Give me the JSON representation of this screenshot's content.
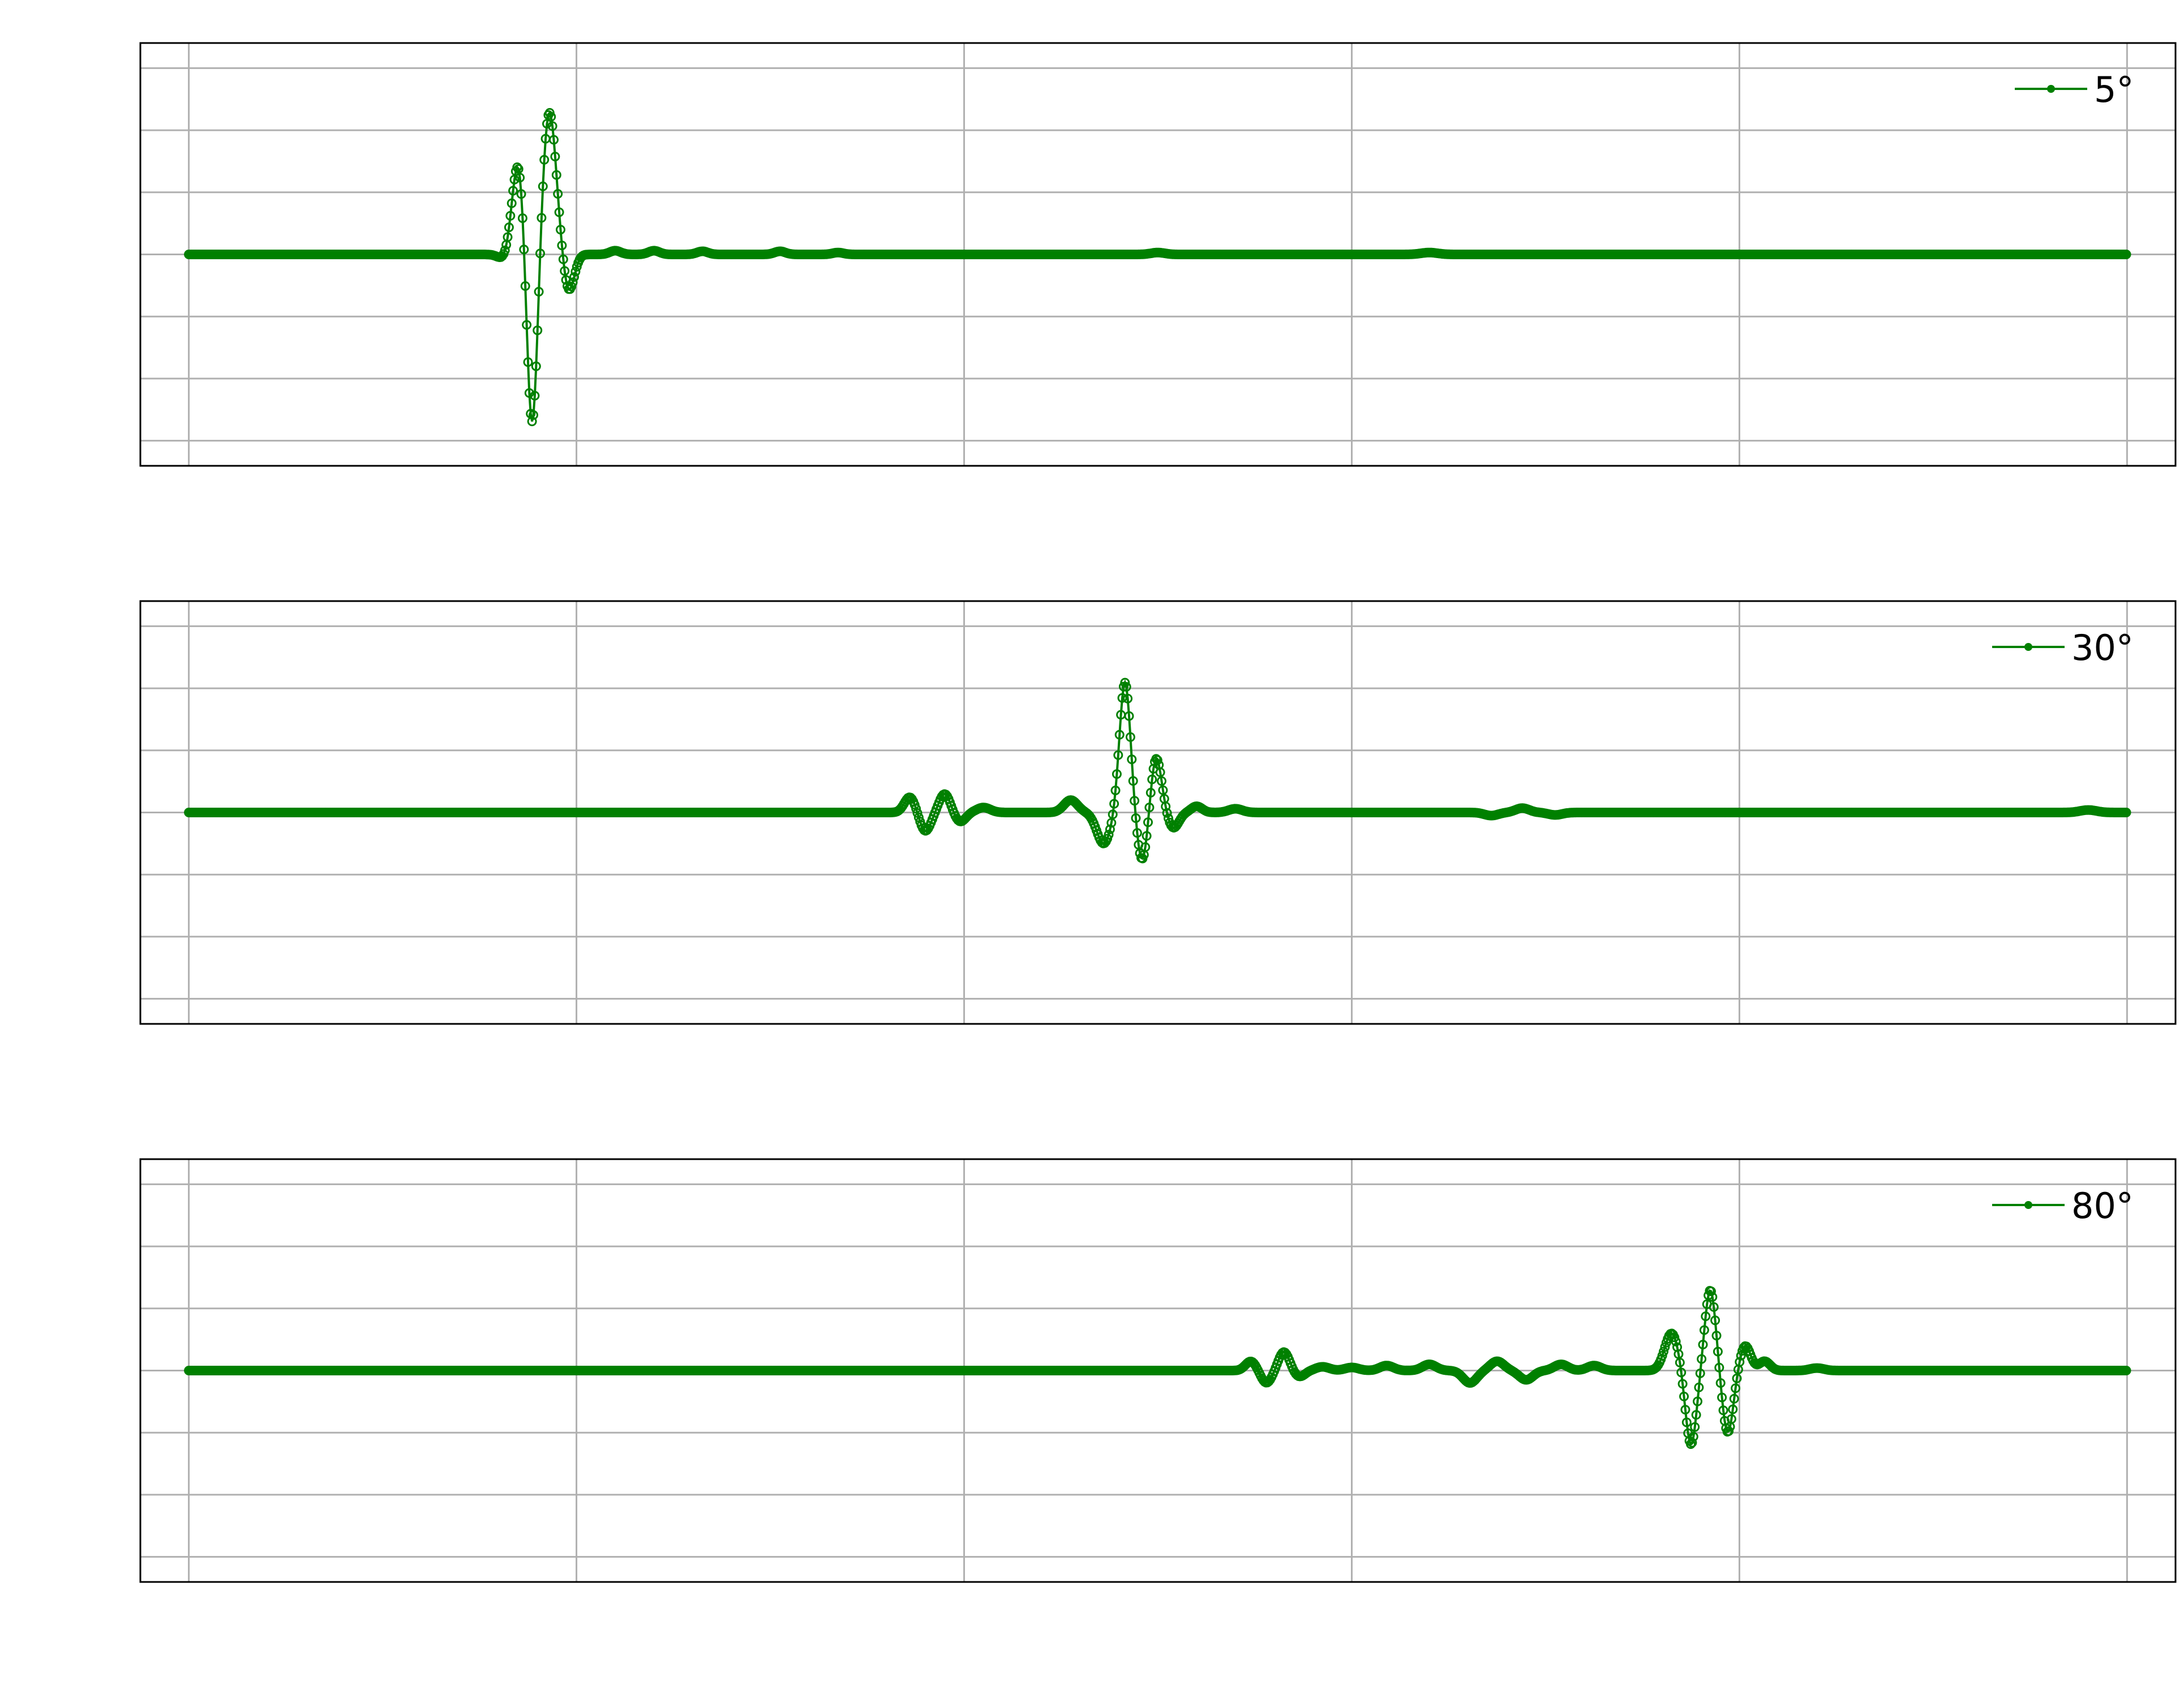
{
  "colors": {
    "series": "#008000",
    "grid": "#b0b0b0",
    "frame": "#000000",
    "background": "#ffffff"
  },
  "chart_data": [
    {
      "type": "line",
      "title": "",
      "xlabel": "",
      "ylabel": "",
      "x_range": [
        0,
        1000
      ],
      "y_range": [
        -3.2,
        3.2
      ],
      "grid": true,
      "legend_position": "top-right",
      "legend": "5°",
      "series": [
        {
          "name": "5°",
          "markers": "hollow-circle",
          "x_step": 0.7,
          "events": [
            {
              "x": 165,
              "amp": -0.2,
              "width": 5
            },
            {
              "x": 170,
              "amp": 1.6,
              "width": 5
            },
            {
              "x": 177,
              "amp": -3.0,
              "width": 4
            },
            {
              "x": 186,
              "amp": 2.3,
              "width": 5
            },
            {
              "x": 196,
              "amp": -0.6,
              "width": 4
            },
            {
              "x": 220,
              "amp": 0.06,
              "width": 4
            },
            {
              "x": 240,
              "amp": 0.06,
              "width": 4
            },
            {
              "x": 265,
              "amp": 0.05,
              "width": 4
            },
            {
              "x": 305,
              "amp": 0.05,
              "width": 4
            },
            {
              "x": 335,
              "amp": 0.03,
              "width": 4
            },
            {
              "x": 500,
              "amp": 0.03,
              "width": 5
            },
            {
              "x": 640,
              "amp": 0.03,
              "width": 6
            }
          ]
        }
      ]
    },
    {
      "type": "line",
      "title": "",
      "xlabel": "",
      "ylabel": "",
      "x_range": [
        0,
        1000
      ],
      "y_range": [
        -3.2,
        3.2
      ],
      "grid": true,
      "legend_position": "top-right",
      "legend": "30°",
      "series": [
        {
          "name": "30°",
          "markers": "hollow-circle",
          "x_step": 0.7,
          "events": [
            {
              "x": 372,
              "amp": 0.25,
              "width": 4
            },
            {
              "x": 380,
              "amp": -0.3,
              "width": 4
            },
            {
              "x": 390,
              "amp": 0.3,
              "width": 4
            },
            {
              "x": 398,
              "amp": -0.15,
              "width": 4
            },
            {
              "x": 410,
              "amp": 0.08,
              "width": 5
            },
            {
              "x": 455,
              "amp": 0.2,
              "width": 5
            },
            {
              "x": 472,
              "amp": -0.5,
              "width": 5
            },
            {
              "x": 483,
              "amp": 2.1,
              "width": 4
            },
            {
              "x": 492,
              "amp": -0.8,
              "width": 4
            },
            {
              "x": 499,
              "amp": 0.9,
              "width": 4
            },
            {
              "x": 508,
              "amp": -0.25,
              "width": 4
            },
            {
              "x": 520,
              "amp": 0.1,
              "width": 4
            },
            {
              "x": 540,
              "amp": 0.06,
              "width": 5
            },
            {
              "x": 672,
              "amp": -0.05,
              "width": 5
            },
            {
              "x": 688,
              "amp": 0.07,
              "width": 5
            },
            {
              "x": 705,
              "amp": -0.04,
              "width": 5
            },
            {
              "x": 980,
              "amp": 0.04,
              "width": 6
            }
          ]
        }
      ]
    },
    {
      "type": "line",
      "title": "",
      "xlabel": "",
      "ylabel": "",
      "x_range": [
        0,
        1000
      ],
      "y_range": [
        -3.2,
        3.2
      ],
      "grid": true,
      "legend_position": "top-right",
      "legend": "80°",
      "series": [
        {
          "name": "80°",
          "markers": "hollow-circle",
          "x_step": 0.7,
          "events": [
            {
              "x": 548,
              "amp": 0.15,
              "width": 4
            },
            {
              "x": 556,
              "amp": -0.2,
              "width": 4
            },
            {
              "x": 565,
              "amp": 0.3,
              "width": 4
            },
            {
              "x": 573,
              "amp": -0.1,
              "width": 4
            },
            {
              "x": 585,
              "amp": 0.06,
              "width": 5
            },
            {
              "x": 600,
              "amp": 0.05,
              "width": 5
            },
            {
              "x": 618,
              "amp": 0.08,
              "width": 5
            },
            {
              "x": 640,
              "amp": 0.1,
              "width": 5
            },
            {
              "x": 661,
              "amp": -0.2,
              "width": 5
            },
            {
              "x": 675,
              "amp": 0.15,
              "width": 5
            },
            {
              "x": 690,
              "amp": -0.15,
              "width": 5
            },
            {
              "x": 708,
              "amp": 0.1,
              "width": 5
            },
            {
              "x": 725,
              "amp": 0.08,
              "width": 5
            },
            {
              "x": 765,
              "amp": 0.6,
              "width": 5
            },
            {
              "x": 775,
              "amp": -1.2,
              "width": 4
            },
            {
              "x": 785,
              "amp": 1.3,
              "width": 4
            },
            {
              "x": 794,
              "amp": -1.0,
              "width": 4
            },
            {
              "x": 803,
              "amp": 0.4,
              "width": 4
            },
            {
              "x": 813,
              "amp": 0.15,
              "width": 4
            },
            {
              "x": 840,
              "amp": 0.04,
              "width": 5
            }
          ]
        }
      ]
    }
  ]
}
